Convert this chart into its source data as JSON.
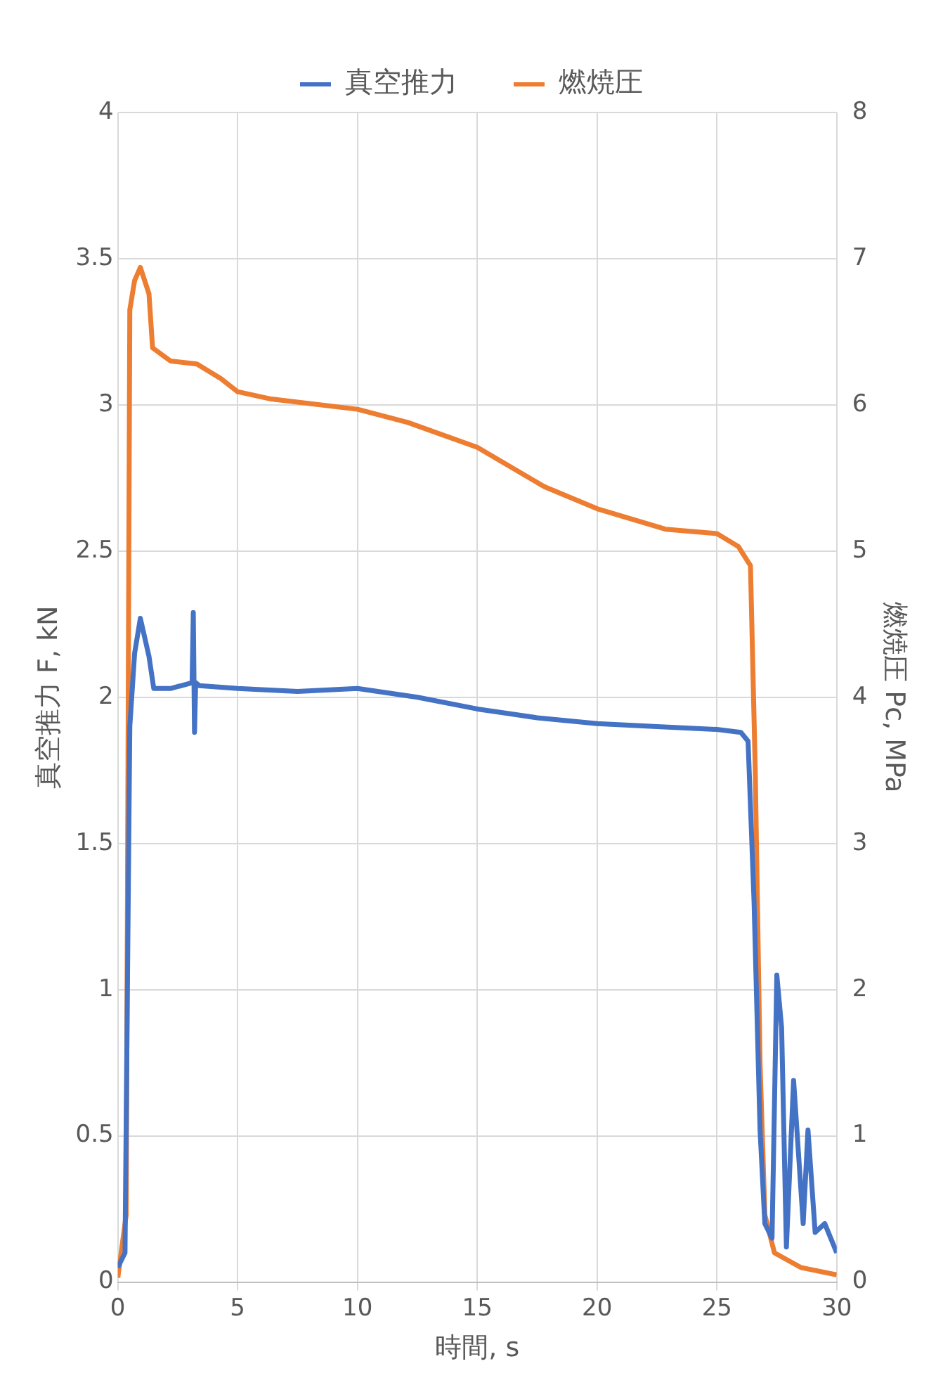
{
  "chart_data": {
    "type": "line",
    "xlabel": "時間, s",
    "ylabel": "真空推力 F, kN",
    "y2label": "燃焼圧 Pc, MPa",
    "xlim": [
      0,
      30
    ],
    "xticks": [
      0,
      5,
      10,
      15,
      20,
      25,
      30
    ],
    "ylim": [
      0,
      4
    ],
    "yticks": [
      0,
      0.5,
      1,
      1.5,
      2,
      2.5,
      3,
      3.5,
      4
    ],
    "y2lim": [
      0,
      8
    ],
    "y2ticks": [
      0,
      1,
      2,
      3,
      4,
      5,
      6,
      7,
      8
    ],
    "grid": true,
    "legend": "top",
    "marker": "none",
    "line_style": "solid",
    "series": [
      {
        "name": "真空推力",
        "color": "#4472c4",
        "axis": "y",
        "x": [
          0,
          0.3,
          0.5,
          0.7,
          0.94,
          1.3,
          1.5,
          2.2,
          3.1,
          3.15,
          3.2,
          3.25,
          3.4,
          5,
          7.5,
          10,
          12.5,
          15,
          17.5,
          20,
          22.5,
          25,
          26,
          26.3,
          26.55,
          26.8,
          27.0,
          27.3,
          27.5,
          27.7,
          27.9,
          28.2,
          28.6,
          28.8,
          29.1,
          29.5,
          30
        ],
        "values": [
          0.05,
          0.1,
          1.9,
          2.15,
          2.27,
          2.14,
          2.03,
          2.03,
          2.05,
          2.29,
          1.88,
          2.05,
          2.04,
          2.03,
          2.02,
          2.03,
          2.0,
          1.96,
          1.93,
          1.91,
          1.9,
          1.89,
          1.88,
          1.85,
          1.3,
          0.52,
          0.2,
          0.15,
          1.05,
          0.87,
          0.12,
          0.69,
          0.2,
          0.52,
          0.17,
          0.2,
          0.1
        ]
      },
      {
        "name": "燃焼圧",
        "color": "#ed7d31",
        "axis": "y2",
        "x": [
          0,
          0.35,
          0.5,
          0.7,
          0.94,
          1.3,
          1.45,
          2.2,
          3.3,
          4.3,
          5,
          6.4,
          10,
          12.1,
          15,
          17.8,
          20,
          22.85,
          25,
          25.9,
          26.4,
          26.6,
          26.8,
          27.0,
          27.4,
          28.5,
          30
        ],
        "values": [
          0.03,
          0.46,
          6.65,
          6.85,
          6.94,
          6.76,
          6.39,
          6.3,
          6.28,
          6.18,
          6.09,
          6.04,
          5.97,
          5.88,
          5.71,
          5.44,
          5.29,
          5.15,
          5.12,
          5.03,
          4.9,
          3.5,
          1.5,
          0.46,
          0.2,
          0.1,
          0.05
        ]
      }
    ]
  }
}
